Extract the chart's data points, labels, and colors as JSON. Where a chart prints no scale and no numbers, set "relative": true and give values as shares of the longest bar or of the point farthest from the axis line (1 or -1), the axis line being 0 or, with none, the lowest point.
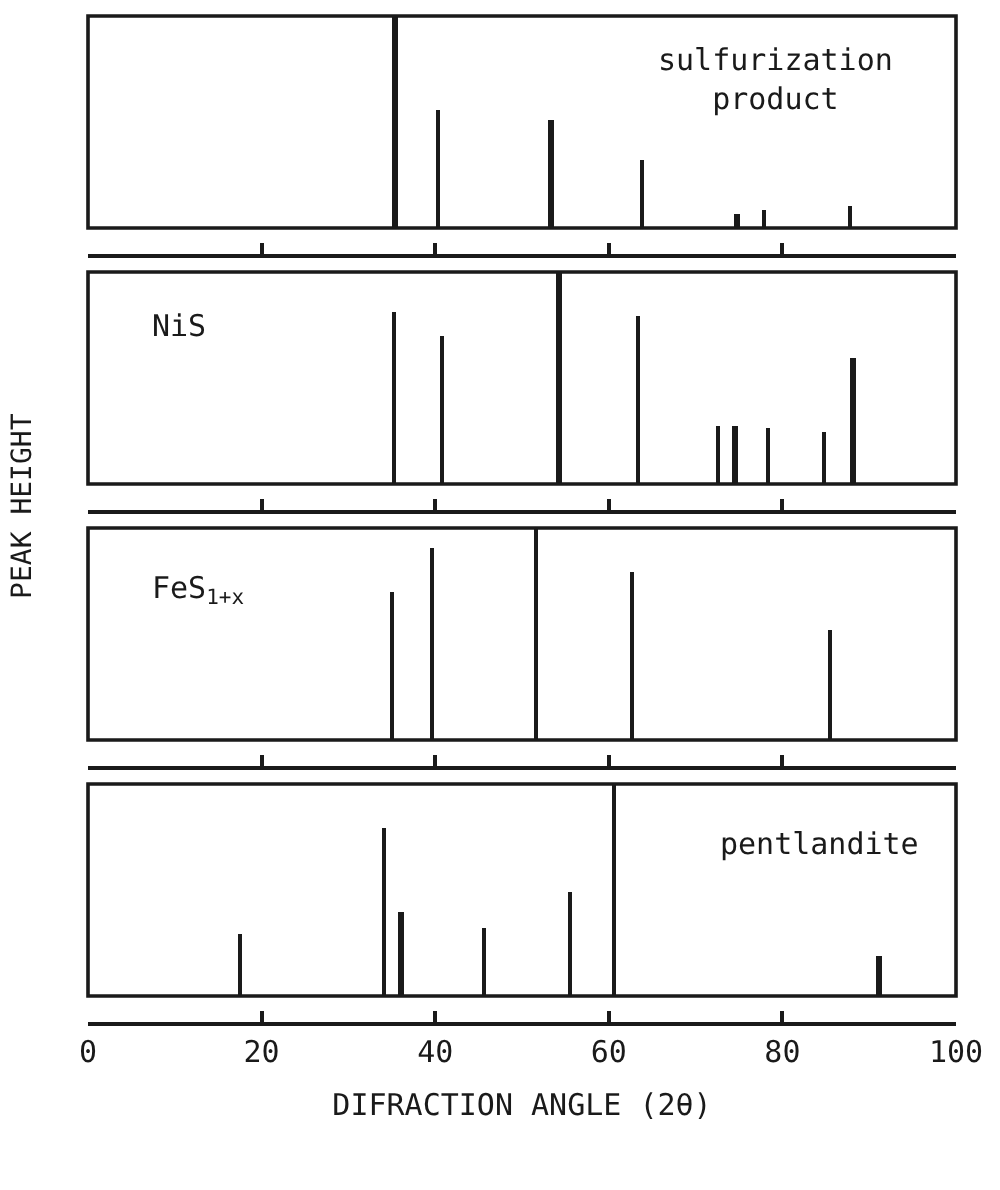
{
  "chart_data": [
    {
      "type": "bar",
      "relative": true,
      "x": [
        35.4,
        40.3,
        53.4,
        63.8,
        74.8,
        77.9,
        87.9
      ],
      "values": [
        1,
        0.56,
        0.51,
        0.32,
        0.066,
        0.085,
        0.1
      ],
      "color": "#1a1a1a",
      "xlim": [
        0,
        100
      ],
      "xticks": [
        0,
        20,
        40,
        60,
        80,
        100
      ],
      "tick_labels": false,
      "annotations": [
        "sulfurization\n   product"
      ]
    },
    {
      "type": "bar",
      "relative": true,
      "x": [
        35.3,
        40.9,
        54.3,
        63.5,
        72.7,
        74.6,
        78.4,
        84.8,
        88.2
      ],
      "values": [
        0.81,
        0.7,
        1,
        0.79,
        0.27,
        0.27,
        0.26,
        0.25,
        0.59
      ],
      "color": "#1a1a1a",
      "xlim": [
        0,
        100
      ],
      "xticks": [
        0,
        20,
        40,
        60,
        80,
        100
      ],
      "tick_labels": false,
      "annotations": [
        "NiS"
      ]
    },
    {
      "type": "bar",
      "relative": true,
      "x": [
        35.0,
        39.6,
        51.6,
        62.7,
        85.6
      ],
      "values": [
        0.7,
        0.905,
        1,
        0.795,
        0.52
      ],
      "color": "#1a1a1a",
      "xlim": [
        0,
        100
      ],
      "xticks": [
        0,
        20,
        40,
        60,
        80,
        100
      ],
      "tick_labels": false,
      "ylabel": "PEAK HEIGHT",
      "annotations": [
        "FeS$_{1+x}$"
      ]
    },
    {
      "type": "bar",
      "relative": true,
      "x": [
        17.5,
        34.2,
        36.1,
        45.6,
        55.6,
        60.6,
        91.2
      ],
      "values": [
        0.29,
        0.79,
        0.4,
        0.32,
        0.49,
        1,
        0.19
      ],
      "color": "#1a1a1a",
      "xlim": [
        0,
        100
      ],
      "xticks": [
        0,
        20,
        40,
        60,
        80,
        100
      ],
      "tick_labels": "x",
      "xlabel": "DIFRACTION ANGLE (2θ)",
      "annotations": [
        "pentlandite"
      ]
    }
  ]
}
